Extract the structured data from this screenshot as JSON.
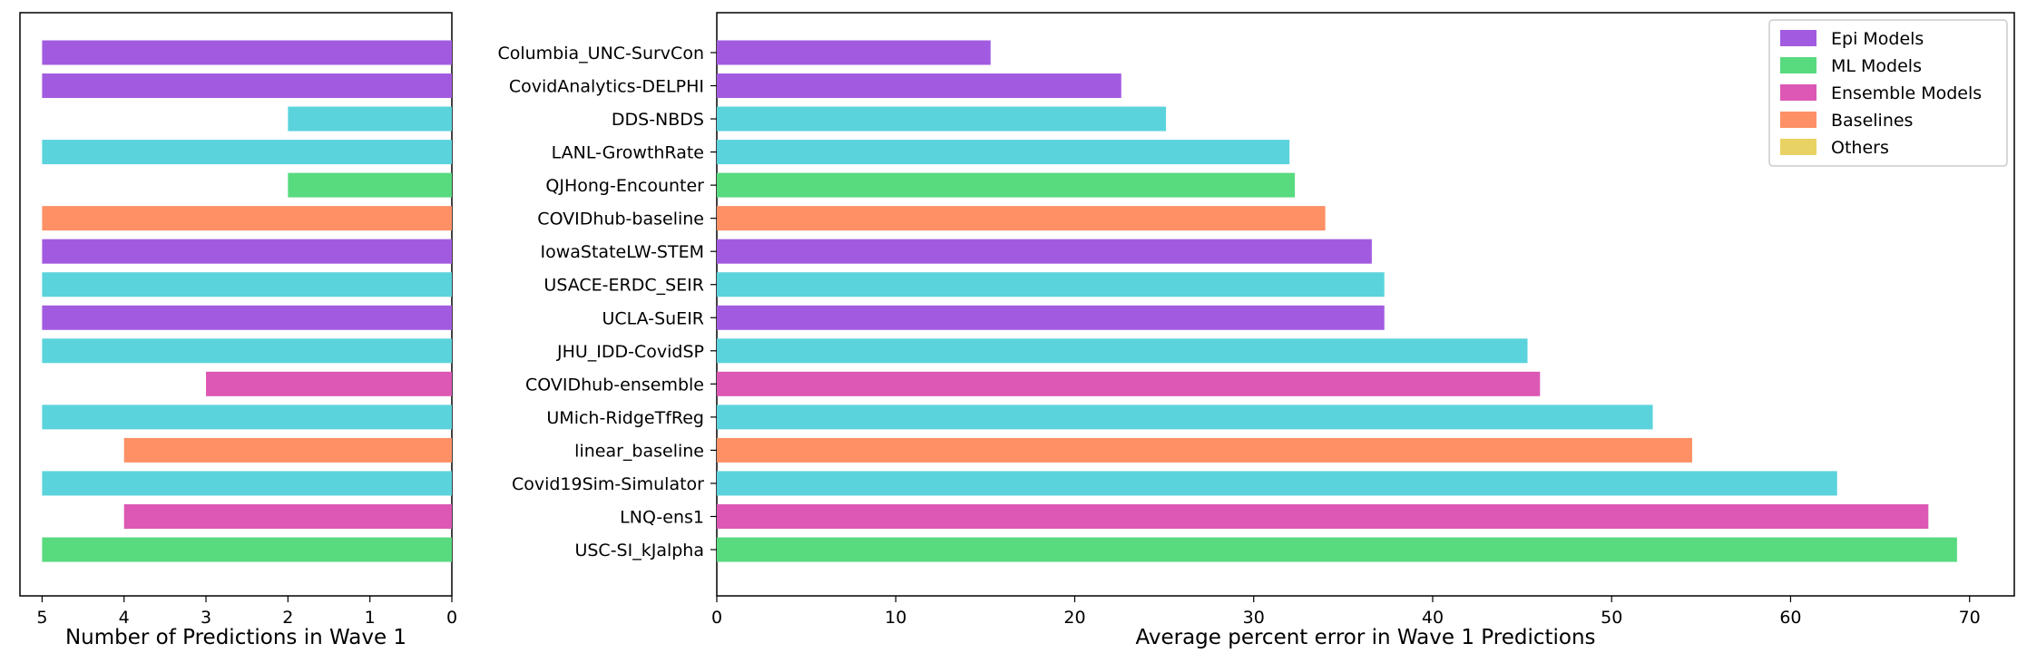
{
  "chart_data": [
    {
      "type": "bar",
      "orientation": "horizontal",
      "inverted_x": true,
      "xlabel": "Number of Predictions in Wave 1",
      "xlim": [
        5.27,
        0
      ],
      "xticks": [
        5,
        4,
        3,
        2,
        1,
        0
      ],
      "values": [
        5,
        5,
        2,
        5,
        2,
        5,
        5,
        5,
        5,
        5,
        3,
        5,
        4,
        5,
        4,
        5
      ],
      "groups": [
        "Epi Models",
        "Epi Models",
        "ML Models-cyan",
        "ML Models-cyan",
        "ML Models",
        "Baselines",
        "Epi Models",
        "ML Models-cyan",
        "Epi Models",
        "ML Models-cyan",
        "Ensemble Models",
        "ML Models-cyan",
        "Baselines",
        "ML Models-cyan",
        "Ensemble Models",
        "ML Models"
      ]
    },
    {
      "type": "bar",
      "orientation": "horizontal",
      "xlabel": "Average percent error in Wave 1 Predictions",
      "xlim": [
        0,
        72.5
      ],
      "xticks": [
        0,
        10,
        20,
        30,
        40,
        50,
        60,
        70
      ],
      "categories": [
        "Columbia_UNC-SurvCon",
        "CovidAnalytics-DELPHI",
        "DDS-NBDS",
        "LANL-GrowthRate",
        "QJHong-Encounter",
        "COVIDhub-baseline",
        "IowaStateLW-STEM",
        "USACE-ERDC_SEIR",
        "UCLA-SuEIR",
        "JHU_IDD-CovidSP",
        "COVIDhub-ensemble",
        "UMich-RidgeTfReg",
        "linear_baseline",
        "Covid19Sim-Simulator",
        "LNQ-ens1",
        "USC-SI_kJalpha"
      ],
      "values": [
        15.3,
        22.6,
        25.1,
        32.0,
        32.3,
        34.0,
        36.6,
        37.3,
        37.3,
        45.3,
        46.0,
        52.3,
        54.5,
        62.6,
        67.7,
        69.3
      ],
      "colors": [
        "#a25be0",
        "#a25be0",
        "#5bd3dc",
        "#5bd3dc",
        "#58da7f",
        "#fd9065",
        "#a25be0",
        "#5bd3dc",
        "#a25be0",
        "#5bd3dc",
        "#dc58b4",
        "#5bd3dc",
        "#fd9065",
        "#5bd3dc",
        "#dc58b4",
        "#58da7f"
      ]
    }
  ],
  "legend": {
    "placement": "top-right",
    "items": [
      {
        "label": "Epi Models",
        "color": "#a25be0"
      },
      {
        "label": "ML Models",
        "color": "#58da7f"
      },
      {
        "label": "Ensemble Models",
        "color": "#dc58b4"
      },
      {
        "label": "Baselines",
        "color": "#fd9065"
      },
      {
        "label": "Others",
        "color": "#e8d263"
      }
    ]
  }
}
